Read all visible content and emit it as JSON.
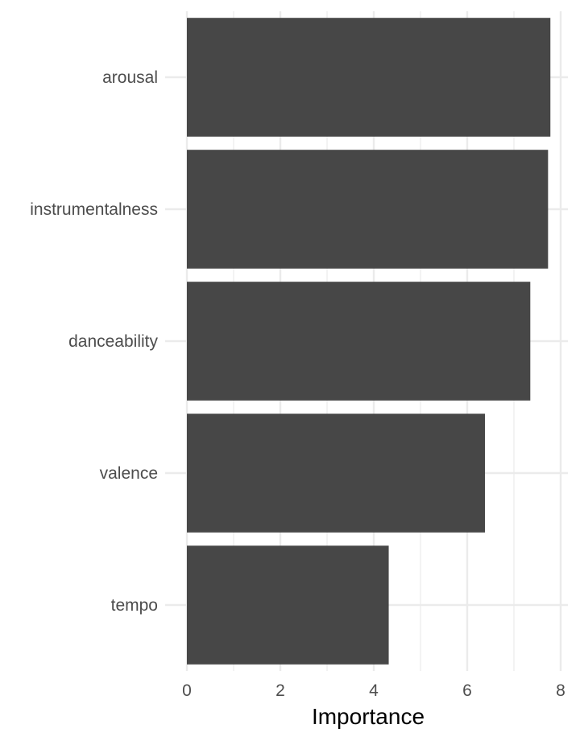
{
  "chart_data": {
    "type": "bar",
    "orientation": "horizontal",
    "categories": [
      "arousal",
      "instrumentalness",
      "danceability",
      "valence",
      "tempo"
    ],
    "values": [
      7.78,
      7.73,
      7.35,
      6.38,
      4.32
    ],
    "title": "",
    "xlabel": "Importance",
    "ylabel": "",
    "xlim": [
      0,
      8.3
    ],
    "xticks": [
      0,
      2,
      4,
      6,
      8
    ],
    "grid": true,
    "bar_color": "#474747",
    "grid_color": "#ebebeb",
    "background": "#ffffff"
  }
}
